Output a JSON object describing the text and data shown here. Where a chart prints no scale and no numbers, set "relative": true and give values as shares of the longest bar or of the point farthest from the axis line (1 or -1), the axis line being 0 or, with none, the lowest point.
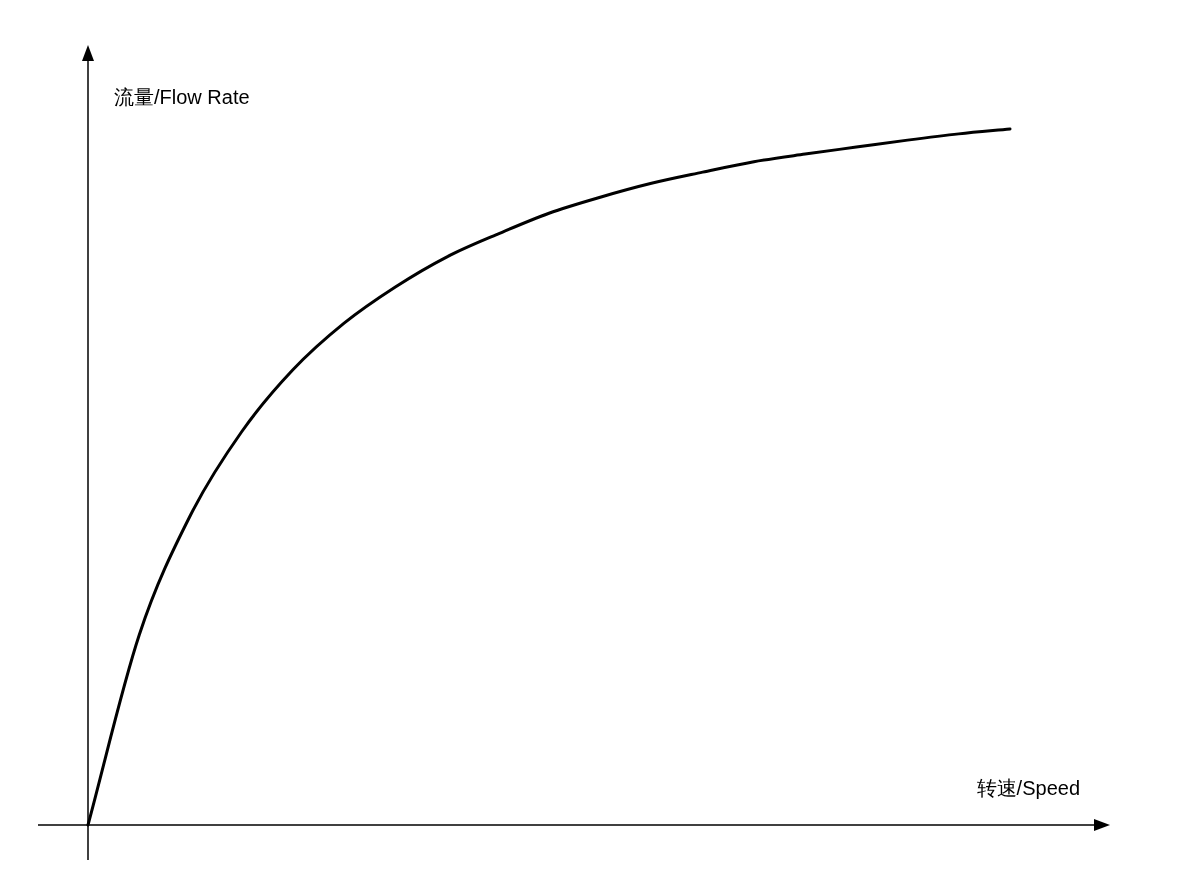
{
  "chart_data": {
    "type": "line",
    "xlabel": "转速/Speed",
    "ylabel": "流量/Flow Rate",
    "relative": true,
    "color": "#000000",
    "categories": [
      null,
      null,
      null,
      null,
      null,
      null,
      null,
      null,
      null,
      null,
      null,
      null,
      null,
      null,
      null,
      null,
      null,
      null,
      null
    ],
    "values": [
      0,
      0.273,
      0.445,
      0.565,
      0.654,
      0.721,
      0.773,
      0.816,
      0.849,
      0.879,
      0.902,
      0.922,
      0.938,
      0.953,
      0.964,
      0.974,
      0.984,
      0.993,
      1
    ]
  }
}
